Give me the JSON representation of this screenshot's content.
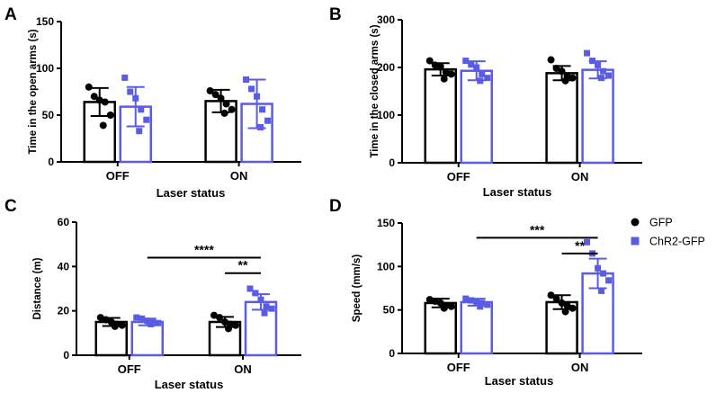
{
  "legend": {
    "entries": [
      {
        "name": "GFP",
        "color": "#000000",
        "marker": "circle"
      },
      {
        "name": "ChR2-GFP",
        "color": "#5a5ce6",
        "marker": "square"
      }
    ]
  },
  "chart_data": [
    {
      "type": "bar",
      "letter": "A",
      "categories": [
        "OFF",
        "ON"
      ],
      "xlabel": "Laser status",
      "ylabel": "Time in the open arms (s)",
      "ylim": [
        0,
        150
      ],
      "yticks": [
        0,
        50,
        100,
        150
      ],
      "series": [
        {
          "name": "GFP",
          "values": [
            64,
            65
          ],
          "sd": [
            15,
            12
          ],
          "points": [
            [
              80,
              70,
              66,
              64,
              50,
              39
            ],
            [
              76,
              72,
              68,
              62,
              56,
              52
            ]
          ]
        },
        {
          "name": "ChR2-GFP",
          "values": [
            59,
            62
          ],
          "sd": [
            21,
            26
          ],
          "points": [
            [
              90,
              75,
              68,
              56,
              45,
              33
            ],
            [
              88,
              78,
              70,
              56,
              44,
              37
            ]
          ]
        }
      ],
      "significance": []
    },
    {
      "type": "bar",
      "letter": "B",
      "categories": [
        "OFF",
        "ON"
      ],
      "xlabel": "Laser status",
      "ylabel": "Time in the closed arms (s)",
      "ylim": [
        0,
        300
      ],
      "yticks": [
        0,
        100,
        200,
        300
      ],
      "series": [
        {
          "name": "GFP",
          "values": [
            196,
            188
          ],
          "sd": [
            13,
            15
          ],
          "points": [
            [
              214,
              205,
              202,
              190,
              186,
              176
            ],
            [
              216,
              198,
              192,
              182,
              178,
              172
            ]
          ]
        },
        {
          "name": "ChR2-GFP",
          "values": [
            193,
            195
          ],
          "sd": [
            20,
            18
          ],
          "points": [
            [
              214,
              206,
              200,
              186,
              178,
              172
            ],
            [
              230,
              214,
              205,
              192,
              183,
              178
            ]
          ]
        }
      ],
      "significance": []
    },
    {
      "type": "bar",
      "letter": "C",
      "categories": [
        "OFF",
        "ON"
      ],
      "xlabel": "Laser status",
      "ylabel": "Distance (m)",
      "ylim": [
        0,
        60
      ],
      "yticks": [
        0,
        20,
        40,
        60
      ],
      "series": [
        {
          "name": "GFP",
          "values": [
            15,
            15
          ],
          "sd": [
            1.8,
            2.3
          ],
          "points": [
            [
              17,
              16,
              15,
              14,
              13.5,
              13
            ],
            [
              18,
              17,
              15,
              14,
              13.5,
              12
            ]
          ]
        },
        {
          "name": "ChR2-GFP",
          "values": [
            15,
            24
          ],
          "sd": [
            1.5,
            3.5
          ],
          "points": [
            [
              17,
              16.5,
              15.5,
              15,
              14.5,
              14
            ],
            [
              30,
              28,
              25,
              22,
              21,
              19
            ]
          ]
        }
      ],
      "significance": [
        {
          "from": [
            0,
            1
          ],
          "to": [
            1,
            1
          ],
          "label": "****",
          "level": 44
        },
        {
          "from": [
            1,
            0
          ],
          "to": [
            1,
            1
          ],
          "label": "**",
          "level": 37
        }
      ]
    },
    {
      "type": "bar",
      "letter": "D",
      "categories": [
        "OFF",
        "ON"
      ],
      "xlabel": "Laser status",
      "ylabel": "Speed (mm/s)",
      "ylim": [
        0,
        150
      ],
      "yticks": [
        0,
        50,
        100,
        150
      ],
      "series": [
        {
          "name": "GFP",
          "values": [
            58,
            59
          ],
          "sd": [
            5,
            8
          ],
          "points": [
            [
              62,
              60,
              58,
              55,
              54,
              52
            ],
            [
              67,
              63,
              58,
              55,
              52,
              48
            ]
          ]
        },
        {
          "name": "ChR2-GFP",
          "values": [
            59,
            92
          ],
          "sd": [
            4,
            17
          ],
          "points": [
            [
              63,
              61,
              59,
              58,
              56,
              54
            ],
            [
              128,
              115,
              98,
              92,
              84,
              72
            ]
          ]
        }
      ],
      "significance": [
        {
          "from": [
            0,
            1
          ],
          "to": [
            1,
            1
          ],
          "label": "***",
          "level": 133
        },
        {
          "from": [
            1,
            0
          ],
          "to": [
            1,
            1
          ],
          "label": "**",
          "level": 115
        }
      ]
    }
  ]
}
